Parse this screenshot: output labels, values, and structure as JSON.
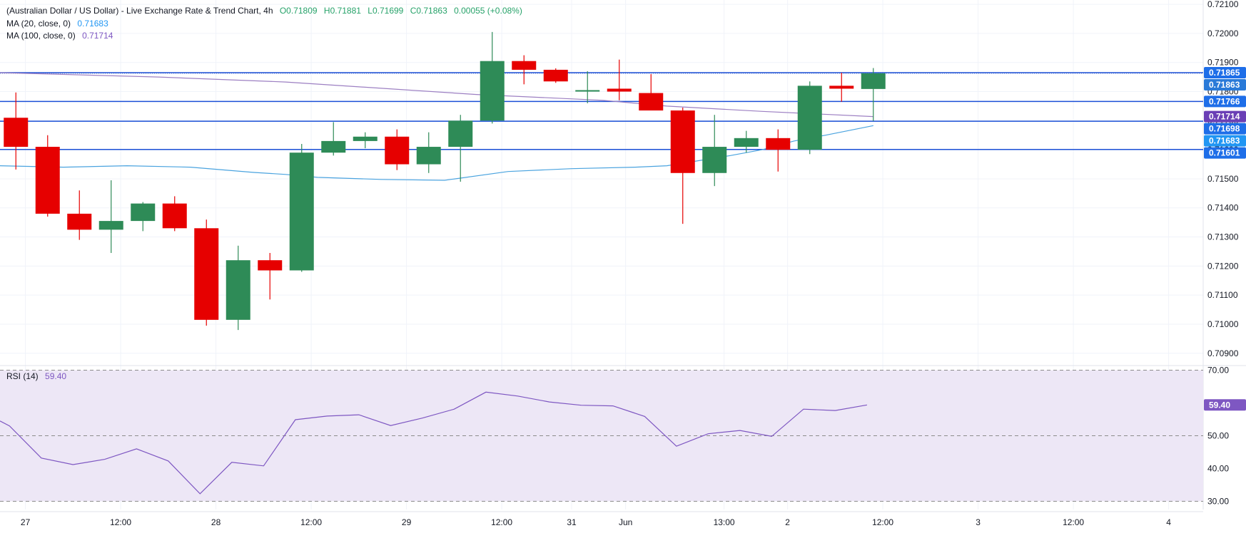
{
  "title": "(Australian Dollar / US Dollar) - Live Exchange Rate & Trend Chart, 4h",
  "ohlc_readout": {
    "open": "O0.71809",
    "high": "H0.71881",
    "low": "L0.71699",
    "close": "C0.71863",
    "change": "0.00055 (+0.08%)"
  },
  "indicators": {
    "ma20": {
      "label": "MA (20, close, 0)",
      "value": "0.71683"
    },
    "ma100": {
      "label": "MA (100, close, 0)",
      "value": "0.71714"
    },
    "rsi": {
      "label": "RSI (14)",
      "value": "59.40"
    }
  },
  "colors": {
    "up": "#2e8b57",
    "down": "#e60000",
    "ma20": "#4aa3df",
    "ma100": "#9c7fc2",
    "hline": "#1a4fd6",
    "rsi": "#7e57c2",
    "rsi_band": "#ede7f6"
  },
  "chart_data": [
    {
      "type": "candlestick",
      "title": "(Australian Dollar / US Dollar) - Live Exchange Rate & Trend Chart, 4h",
      "ylim": [
        0.7087,
        0.72115
      ],
      "y_ticks": [
        "0.72100",
        "0.72000",
        "0.71900",
        "0.71800",
        "0.71700",
        "0.71600",
        "0.71500",
        "0.71400",
        "0.71300",
        "0.71200",
        "0.71100",
        "0.71000",
        "0.70900"
      ],
      "x_ticks": [
        {
          "i": 0.8,
          "label": "27"
        },
        {
          "i": 3.8,
          "label": "12:00"
        },
        {
          "i": 6.8,
          "label": "28"
        },
        {
          "i": 9.8,
          "label": "12:00"
        },
        {
          "i": 12.8,
          "label": "29"
        },
        {
          "i": 15.8,
          "label": "12:00"
        },
        {
          "i": 18.0,
          "label": "31"
        },
        {
          "i": 19.7,
          "label": "Jun"
        },
        {
          "i": 22.8,
          "label": "13:00"
        },
        {
          "i": 24.8,
          "label": "2"
        },
        {
          "i": 27.8,
          "label": "12:00"
        },
        {
          "i": 30.8,
          "label": "3"
        },
        {
          "i": 33.8,
          "label": "12:00"
        },
        {
          "i": 36.8,
          "label": "4"
        }
      ],
      "candles": [
        {
          "o": 0.7171,
          "h": 0.71797,
          "l": 0.71532,
          "c": 0.7161
        },
        {
          "o": 0.7161,
          "h": 0.7165,
          "l": 0.7137,
          "c": 0.7138
        },
        {
          "o": 0.7138,
          "h": 0.7146,
          "l": 0.7129,
          "c": 0.71325
        },
        {
          "o": 0.71325,
          "h": 0.71495,
          "l": 0.71245,
          "c": 0.71355
        },
        {
          "o": 0.71355,
          "h": 0.7142,
          "l": 0.7132,
          "c": 0.71415
        },
        {
          "o": 0.71415,
          "h": 0.7144,
          "l": 0.7132,
          "c": 0.7133
        },
        {
          "o": 0.7133,
          "h": 0.7136,
          "l": 0.70995,
          "c": 0.71015
        },
        {
          "o": 0.71015,
          "h": 0.7127,
          "l": 0.7098,
          "c": 0.7122
        },
        {
          "o": 0.7122,
          "h": 0.71245,
          "l": 0.71085,
          "c": 0.71185
        },
        {
          "o": 0.71185,
          "h": 0.7162,
          "l": 0.7118,
          "c": 0.7159
        },
        {
          "o": 0.7159,
          "h": 0.71695,
          "l": 0.7158,
          "c": 0.7163
        },
        {
          "o": 0.7163,
          "h": 0.7166,
          "l": 0.71605,
          "c": 0.71645
        },
        {
          "o": 0.71645,
          "h": 0.7167,
          "l": 0.7153,
          "c": 0.7155
        },
        {
          "o": 0.7155,
          "h": 0.7166,
          "l": 0.7152,
          "c": 0.7161
        },
        {
          "o": 0.7161,
          "h": 0.7172,
          "l": 0.7149,
          "c": 0.717
        },
        {
          "o": 0.717,
          "h": 0.72005,
          "l": 0.7169,
          "c": 0.71905
        },
        {
          "o": 0.71905,
          "h": 0.71925,
          "l": 0.71825,
          "c": 0.71875
        },
        {
          "o": 0.71875,
          "h": 0.7188,
          "l": 0.7183,
          "c": 0.71835
        },
        {
          "o": 0.718,
          "h": 0.7187,
          "l": 0.7176,
          "c": 0.71805
        },
        {
          "o": 0.7181,
          "h": 0.7191,
          "l": 0.7177,
          "c": 0.718
        },
        {
          "o": 0.71795,
          "h": 0.7186,
          "l": 0.7174,
          "c": 0.71735
        },
        {
          "o": 0.71735,
          "h": 0.71745,
          "l": 0.71345,
          "c": 0.7152
        },
        {
          "o": 0.7152,
          "h": 0.7172,
          "l": 0.71475,
          "c": 0.7161
        },
        {
          "o": 0.7161,
          "h": 0.71665,
          "l": 0.7159,
          "c": 0.7164
        },
        {
          "o": 0.7164,
          "h": 0.7167,
          "l": 0.71525,
          "c": 0.716
        },
        {
          "o": 0.716,
          "h": 0.71835,
          "l": 0.71585,
          "c": 0.7182
        },
        {
          "o": 0.7182,
          "h": 0.71865,
          "l": 0.71765,
          "c": 0.7181
        },
        {
          "o": 0.71809,
          "h": 0.71881,
          "l": 0.71699,
          "c": 0.71863
        }
      ],
      "candle_x": [
        0.5,
        1.5,
        2.5,
        3.5,
        4.5,
        5.5,
        6.5,
        7.5,
        8.5,
        9.5,
        10.5,
        11.5,
        12.5,
        13.5,
        14.5,
        15.5,
        16.5,
        17.5,
        18.5,
        19.5,
        20.5,
        21.5,
        22.5,
        23.5,
        24.5,
        25.5,
        26.5,
        27.5
      ],
      "series": [
        {
          "name": "MA (20, close, 0)",
          "x": [
            0,
            2,
            4,
            6,
            8,
            9,
            10,
            12,
            14,
            16,
            18,
            20,
            21,
            23,
            24,
            25,
            26,
            27.5
          ],
          "values": [
            0.71545,
            0.7154,
            0.71545,
            0.7154,
            0.71522,
            0.71515,
            0.71505,
            0.71498,
            0.71495,
            0.71525,
            0.71535,
            0.7154,
            0.71545,
            0.7158,
            0.716,
            0.7163,
            0.7165,
            0.71683
          ]
        },
        {
          "name": "MA (100, close, 0)",
          "x": [
            0,
            5,
            9,
            15,
            19,
            21,
            24,
            27.5
          ],
          "values": [
            0.71865,
            0.7185,
            0.71833,
            0.7179,
            0.7177,
            0.7175,
            0.71732,
            0.71714
          ]
        }
      ],
      "hlines": [
        0.71865,
        0.71766,
        0.71698,
        0.71601
      ],
      "price_labels": [
        {
          "value": "0.71865",
          "y": 0.71865,
          "color": "#1e6ee8"
        },
        {
          "value": "0.71863",
          "y": 0.71863,
          "color": "#2a7ad8"
        },
        {
          "value": "0.71766",
          "y": 0.71766,
          "color": "#1e6ee8"
        },
        {
          "value": "0.71714",
          "y": 0.71714,
          "color": "#6a3fb5"
        },
        {
          "value": "0.71698",
          "y": 0.71698,
          "color": "#1e6ee8"
        },
        {
          "value": "0.71683",
          "y": 0.71683,
          "color": "#2196f3"
        },
        {
          "value": "0.71601",
          "y": 0.71601,
          "color": "#1e6ee8"
        }
      ]
    },
    {
      "type": "line",
      "title": "RSI (14)",
      "ylim": [
        27.5,
        72.5
      ],
      "y_ticks": [
        "70.00",
        "50.00",
        "40.00",
        "30.00"
      ],
      "band": [
        30,
        70
      ],
      "midline": 50,
      "series": [
        {
          "name": "RSI (14)",
          "x": [
            0,
            0.3,
            1.3,
            2.3,
            3.3,
            4.3,
            5.3,
            6.3,
            7.3,
            8.3,
            9.3,
            10.3,
            11.3,
            12.3,
            13.3,
            14.3,
            15.3,
            16.3,
            17.3,
            18.3,
            19.3,
            20.3,
            21.3,
            22.3,
            23.3,
            24.3,
            25.3,
            26.3,
            27.3
          ],
          "values": [
            54.5,
            53.0,
            43.2,
            41.2,
            42.8,
            46.0,
            42.3,
            32.3,
            41.9,
            40.8,
            54.9,
            56.0,
            56.4,
            53.1,
            55.4,
            58.1,
            63.3,
            62.1,
            60.3,
            59.3,
            59.1,
            55.9,
            46.8,
            50.6,
            51.6,
            49.8,
            58.1,
            57.7,
            59.4
          ]
        }
      ],
      "price_labels": [
        {
          "value": "59.40",
          "y": 59.4,
          "color": "#7e57c2"
        }
      ]
    }
  ]
}
